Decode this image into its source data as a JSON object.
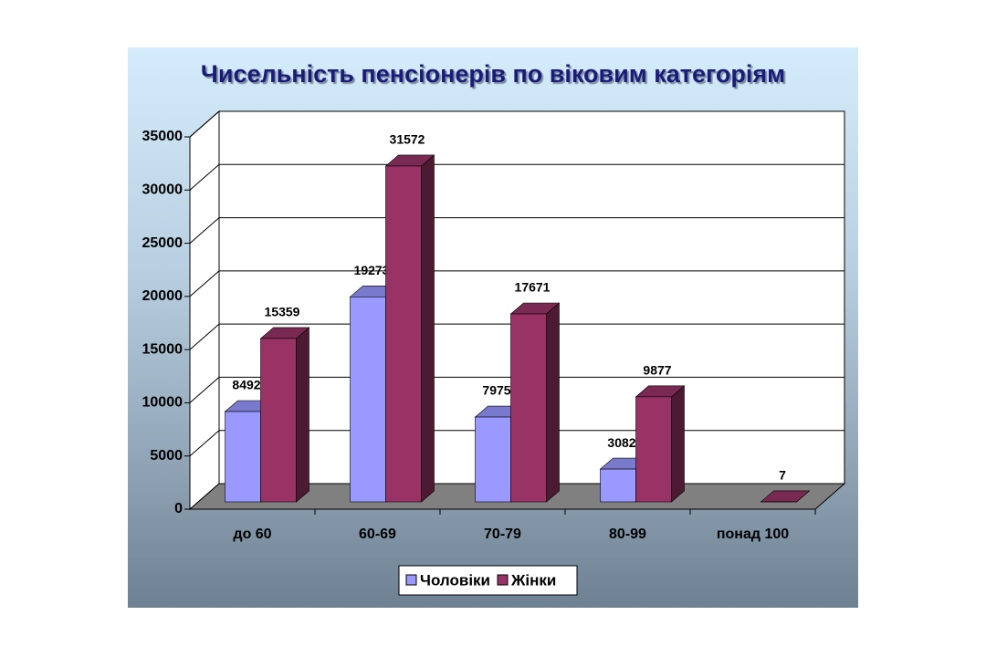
{
  "chart_data": {
    "type": "bar3d",
    "title": "Чисельність пенсіонерів по віковим категоріям",
    "categories": [
      "до 60",
      "60-69",
      "70-79",
      "80-99",
      "понад 100"
    ],
    "series": [
      {
        "name": "Чоловіки",
        "color": "#9999ff",
        "values": [
          8492,
          19273,
          7975,
          3082,
          null
        ]
      },
      {
        "name": "Жінки",
        "color": "#993366",
        "values": [
          15359,
          31572,
          17671,
          9877,
          7
        ]
      }
    ],
    "ylim": [
      0,
      35000
    ],
    "yticks": [
      0,
      5000,
      10000,
      15000,
      20000,
      25000,
      30000,
      35000
    ],
    "grid": true
  }
}
